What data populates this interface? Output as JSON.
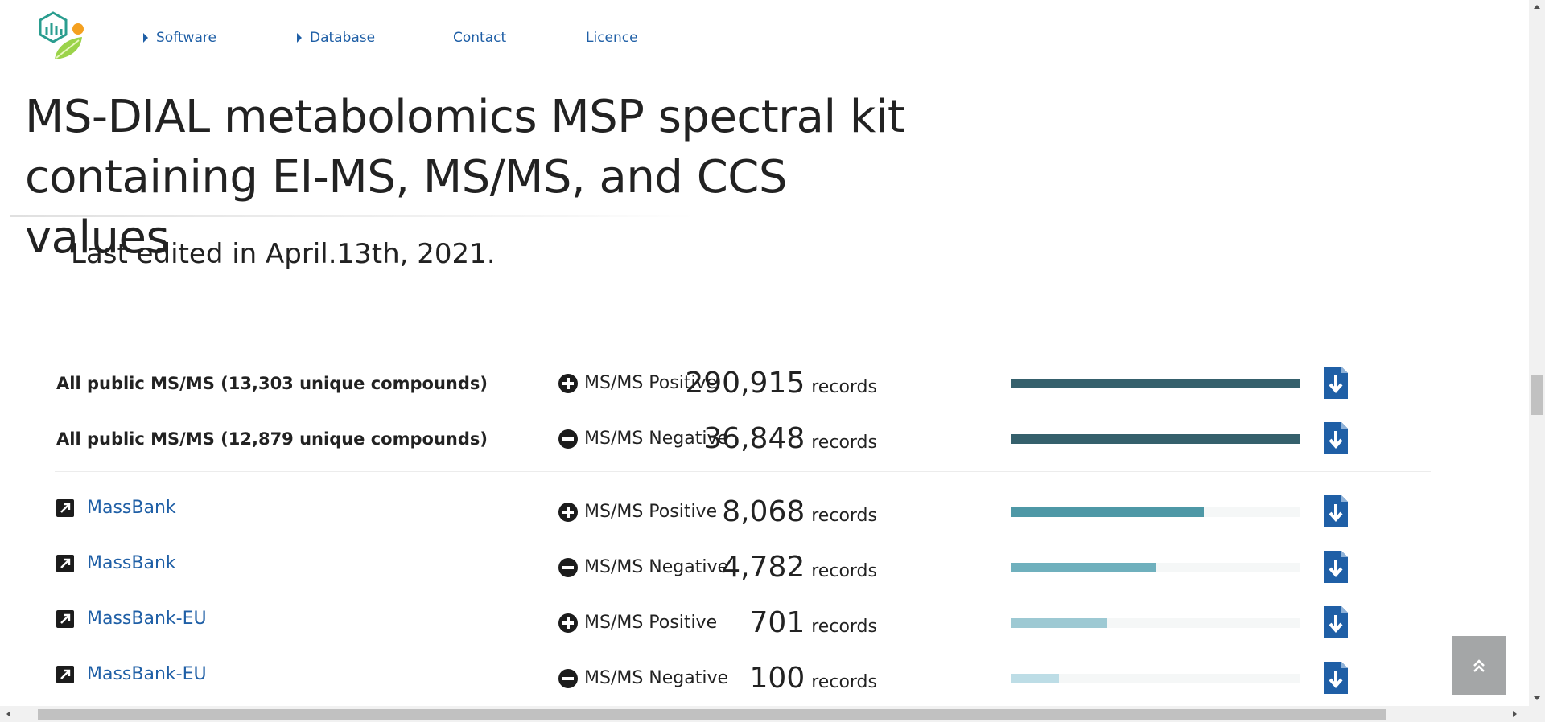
{
  "nav": {
    "items": [
      {
        "label": "Software",
        "has_caret": true
      },
      {
        "label": "Database",
        "has_caret": true
      },
      {
        "label": "Contact",
        "has_caret": false
      },
      {
        "label": "Licence",
        "has_caret": false
      }
    ]
  },
  "page": {
    "title": "MS-DIAL metabolomics MSP spectral kit containing EI-MS, MS/MS, and CCS values",
    "last_edited": "Last edited in April.13th, 2021."
  },
  "colors": {
    "link": "#1f5fa6",
    "bar_dark": "#35606c",
    "bar_teal": "#4e98a6",
    "bar_teal_light": "#6fb0bd",
    "bar_pale": "#9dc9d3",
    "bar_palest": "#bddde6",
    "download": "#1f5fa6"
  },
  "table": {
    "unit": "records",
    "rows": [
      {
        "source": "All public MS/MS (13,303 unique compounds)",
        "link": false,
        "mode": "MS/MS Positive",
        "sign": "plus",
        "count": "290,915",
        "bar_fraction": 1.0,
        "bar_color": "#35606c"
      },
      {
        "source": "All public MS/MS (12,879 unique compounds)",
        "link": false,
        "mode": "MS/MS Negative",
        "sign": "minus",
        "count": "36,848",
        "bar_fraction": 1.0,
        "bar_color": "#35606c"
      },
      {
        "source": "MassBank",
        "link": true,
        "mode": "MS/MS Positive",
        "sign": "plus",
        "count": "8,068",
        "bar_fraction": 0.667,
        "bar_color": "#4e98a6"
      },
      {
        "source": "MassBank",
        "link": true,
        "mode": "MS/MS Negative",
        "sign": "minus",
        "count": "4,782",
        "bar_fraction": 0.5,
        "bar_color": "#6fb0bd"
      },
      {
        "source": "MassBank-EU",
        "link": true,
        "mode": "MS/MS Positive",
        "sign": "plus",
        "count": "701",
        "bar_fraction": 0.333,
        "bar_color": "#9dc9d3"
      },
      {
        "source": "MassBank-EU",
        "link": true,
        "mode": "MS/MS Negative",
        "sign": "minus",
        "count": "100",
        "bar_fraction": 0.167,
        "bar_color": "#bddde6"
      }
    ]
  }
}
